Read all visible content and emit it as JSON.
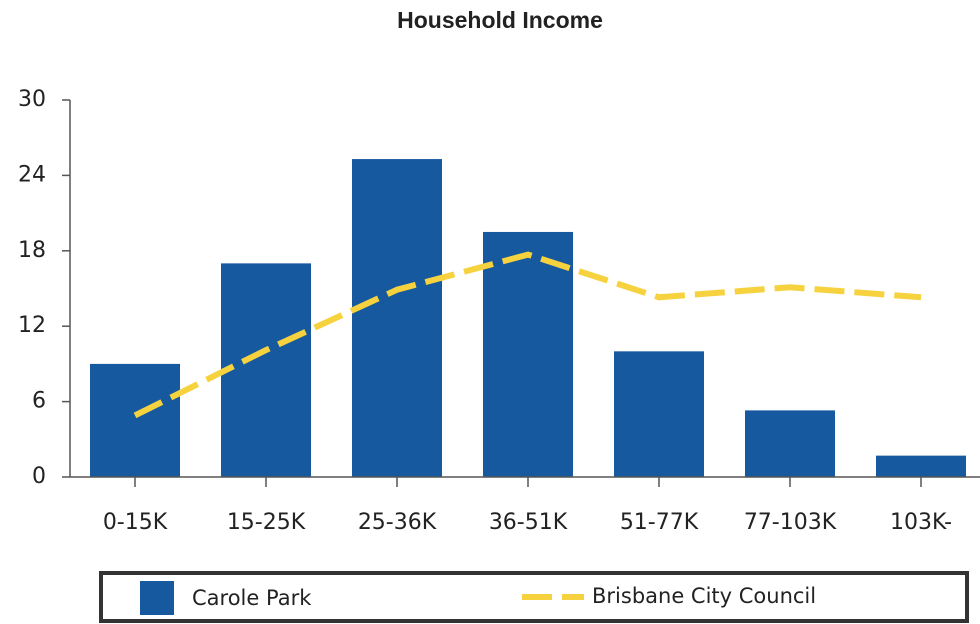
{
  "chart_data": {
    "type": "bar",
    "title": "Household Income",
    "categories": [
      "0-15K",
      "15-25K",
      "25-36K",
      "36-51K",
      "51-77K",
      "77-103K",
      "103K-"
    ],
    "series": [
      {
        "name": "Carole Park",
        "type": "bar",
        "color": "#16599f",
        "values": [
          9,
          17,
          25.3,
          19.5,
          10,
          5.3,
          1.7
        ]
      },
      {
        "name": "Brisbane City Council",
        "type": "line",
        "color": "#f6d23e",
        "values": [
          4.9,
          10.1,
          14.9,
          17.7,
          14.3,
          15.1,
          14.3
        ]
      }
    ],
    "ylim": [
      0,
      30
    ],
    "yticks": [
      0,
      6,
      12,
      18,
      24,
      30
    ],
    "grid": false,
    "legend": "bottom"
  }
}
